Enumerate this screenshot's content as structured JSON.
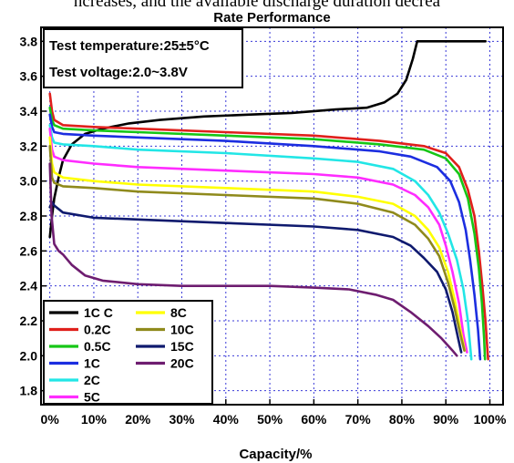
{
  "caption_fragment": "ncreases, and the available discharge duration decrea",
  "chart_data": {
    "type": "line",
    "title": "Rate Performance",
    "xlabel": "Capacity/%",
    "ylabel": "",
    "xlim": [
      -2,
      103
    ],
    "ylim": [
      1.72,
      3.88
    ],
    "x_ticks": [
      0,
      10,
      20,
      30,
      40,
      50,
      60,
      70,
      80,
      90,
      100
    ],
    "x_tick_labels": [
      "0%",
      "10%",
      "20%",
      "30%",
      "40%",
      "50%",
      "60%",
      "70%",
      "80%",
      "90%",
      "100%"
    ],
    "y_ticks": [
      1.8,
      2.0,
      2.2,
      2.4,
      2.6,
      2.8,
      3.0,
      3.2,
      3.4,
      3.6,
      3.8
    ],
    "y_tick_labels": [
      "1.8",
      "2.0",
      "2.2",
      "2.4",
      "2.6",
      "2.8",
      "3.0",
      "3.2",
      "3.4",
      "3.6",
      "3.8"
    ],
    "grid": true,
    "legend_position": "bottom-left",
    "annotations": [
      "Test temperature:25±5°C",
      "Test voltage:2.0~3.8V"
    ],
    "series": [
      {
        "name": "1C C",
        "color": "#000000",
        "points": [
          [
            0,
            2.68
          ],
          [
            0.5,
            2.8
          ],
          [
            1,
            2.9
          ],
          [
            2,
            3.02
          ],
          [
            3,
            3.12
          ],
          [
            5,
            3.21
          ],
          [
            8,
            3.27
          ],
          [
            12,
            3.3
          ],
          [
            18,
            3.33
          ],
          [
            25,
            3.35
          ],
          [
            35,
            3.37
          ],
          [
            45,
            3.38
          ],
          [
            55,
            3.39
          ],
          [
            65,
            3.41
          ],
          [
            72,
            3.42
          ],
          [
            76,
            3.45
          ],
          [
            79,
            3.5
          ],
          [
            81,
            3.58
          ],
          [
            82.5,
            3.7
          ],
          [
            83.5,
            3.8
          ],
          [
            85,
            3.8
          ],
          [
            99,
            3.8
          ]
        ]
      },
      {
        "name": "0.2C",
        "color": "#e0201c",
        "points": [
          [
            0,
            3.5
          ],
          [
            0.5,
            3.4
          ],
          [
            1,
            3.35
          ],
          [
            3,
            3.32
          ],
          [
            10,
            3.31
          ],
          [
            20,
            3.3
          ],
          [
            40,
            3.28
          ],
          [
            60,
            3.26
          ],
          [
            75,
            3.23
          ],
          [
            85,
            3.2
          ],
          [
            90,
            3.16
          ],
          [
            93,
            3.08
          ],
          [
            95,
            2.95
          ],
          [
            96.5,
            2.8
          ],
          [
            97.5,
            2.6
          ],
          [
            98.3,
            2.4
          ],
          [
            99,
            2.2
          ],
          [
            99.4,
            2.05
          ],
          [
            99.6,
            1.98
          ]
        ]
      },
      {
        "name": "0.5C",
        "color": "#16c616",
        "points": [
          [
            0,
            3.42
          ],
          [
            0.5,
            3.35
          ],
          [
            1,
            3.32
          ],
          [
            3,
            3.3
          ],
          [
            10,
            3.29
          ],
          [
            20,
            3.28
          ],
          [
            40,
            3.26
          ],
          [
            60,
            3.24
          ],
          [
            75,
            3.21
          ],
          [
            85,
            3.18
          ],
          [
            90,
            3.13
          ],
          [
            93,
            3.04
          ],
          [
            95,
            2.9
          ],
          [
            96.5,
            2.7
          ],
          [
            97.5,
            2.5
          ],
          [
            98.2,
            2.3
          ],
          [
            98.7,
            2.1
          ],
          [
            98.9,
            1.98
          ]
        ]
      },
      {
        "name": "1C",
        "color": "#1c2ee0",
        "points": [
          [
            0,
            3.38
          ],
          [
            0.5,
            3.31
          ],
          [
            1,
            3.28
          ],
          [
            3,
            3.27
          ],
          [
            10,
            3.26
          ],
          [
            20,
            3.25
          ],
          [
            40,
            3.23
          ],
          [
            60,
            3.2
          ],
          [
            75,
            3.17
          ],
          [
            82,
            3.14
          ],
          [
            88,
            3.08
          ],
          [
            91,
            3.0
          ],
          [
            93,
            2.88
          ],
          [
            94.5,
            2.72
          ],
          [
            95.5,
            2.55
          ],
          [
            96.5,
            2.35
          ],
          [
            97.3,
            2.15
          ],
          [
            97.8,
            1.98
          ]
        ]
      },
      {
        "name": "2C",
        "color": "#22e6e6",
        "points": [
          [
            0,
            3.32
          ],
          [
            0.5,
            3.25
          ],
          [
            1,
            3.22
          ],
          [
            3,
            3.21
          ],
          [
            10,
            3.2
          ],
          [
            20,
            3.18
          ],
          [
            40,
            3.16
          ],
          [
            60,
            3.13
          ],
          [
            70,
            3.11
          ],
          [
            78,
            3.07
          ],
          [
            83,
            3.0
          ],
          [
            86,
            2.92
          ],
          [
            88.5,
            2.82
          ],
          [
            90.5,
            2.7
          ],
          [
            92.5,
            2.55
          ],
          [
            94,
            2.38
          ],
          [
            95,
            2.2
          ],
          [
            95.8,
            1.98
          ]
        ]
      },
      {
        "name": "5C",
        "color": "#ff2cff",
        "points": [
          [
            0,
            3.3
          ],
          [
            0.5,
            3.18
          ],
          [
            1,
            3.14
          ],
          [
            3,
            3.12
          ],
          [
            10,
            3.1
          ],
          [
            20,
            3.08
          ],
          [
            40,
            3.06
          ],
          [
            60,
            3.04
          ],
          [
            70,
            3.02
          ],
          [
            78,
            2.98
          ],
          [
            83,
            2.92
          ],
          [
            86,
            2.85
          ],
          [
            88.5,
            2.75
          ],
          [
            90,
            2.63
          ],
          [
            91.5,
            2.48
          ],
          [
            93,
            2.3
          ],
          [
            94,
            2.12
          ],
          [
            94.8,
            2.02
          ]
        ]
      },
      {
        "name": "8C",
        "color": "#ffff00",
        "points": [
          [
            0,
            3.25
          ],
          [
            0.5,
            3.1
          ],
          [
            1,
            3.05
          ],
          [
            3,
            3.02
          ],
          [
            10,
            3.0
          ],
          [
            20,
            2.98
          ],
          [
            40,
            2.96
          ],
          [
            60,
            2.94
          ],
          [
            70,
            2.91
          ],
          [
            78,
            2.87
          ],
          [
            83,
            2.8
          ],
          [
            86,
            2.72
          ],
          [
            88.5,
            2.62
          ],
          [
            90.5,
            2.48
          ],
          [
            92,
            2.32
          ],
          [
            93.3,
            2.15
          ],
          [
            94.3,
            2.03
          ]
        ]
      },
      {
        "name": "10C",
        "color": "#8f8a1c",
        "points": [
          [
            0,
            3.2
          ],
          [
            0.5,
            3.02
          ],
          [
            1,
            2.99
          ],
          [
            3,
            2.97
          ],
          [
            10,
            2.96
          ],
          [
            20,
            2.94
          ],
          [
            40,
            2.92
          ],
          [
            60,
            2.9
          ],
          [
            70,
            2.87
          ],
          [
            78,
            2.82
          ],
          [
            83,
            2.75
          ],
          [
            86,
            2.67
          ],
          [
            88.5,
            2.57
          ],
          [
            90.5,
            2.42
          ],
          [
            92,
            2.27
          ],
          [
            93.3,
            2.12
          ],
          [
            94.2,
            2.03
          ]
        ]
      },
      {
        "name": "15C",
        "color": "#0f1a6e",
        "points": [
          [
            0,
            2.85
          ],
          [
            0.5,
            2.88
          ],
          [
            1,
            2.86
          ],
          [
            3,
            2.82
          ],
          [
            10,
            2.79
          ],
          [
            20,
            2.78
          ],
          [
            40,
            2.76
          ],
          [
            60,
            2.74
          ],
          [
            70,
            2.72
          ],
          [
            78,
            2.68
          ],
          [
            82,
            2.63
          ],
          [
            85,
            2.56
          ],
          [
            88,
            2.48
          ],
          [
            90,
            2.38
          ],
          [
            91.5,
            2.25
          ],
          [
            92.8,
            2.1
          ],
          [
            93.5,
            2.02
          ]
        ]
      },
      {
        "name": "20C",
        "color": "#6e1d70",
        "points": [
          [
            0,
            3.1
          ],
          [
            0.4,
            2.8
          ],
          [
            1,
            2.64
          ],
          [
            2,
            2.6
          ],
          [
            3,
            2.58
          ],
          [
            5,
            2.52
          ],
          [
            8,
            2.46
          ],
          [
            12,
            2.43
          ],
          [
            20,
            2.41
          ],
          [
            30,
            2.4
          ],
          [
            40,
            2.4
          ],
          [
            50,
            2.4
          ],
          [
            60,
            2.39
          ],
          [
            68,
            2.38
          ],
          [
            74,
            2.35
          ],
          [
            78,
            2.32
          ],
          [
            82,
            2.25
          ],
          [
            86,
            2.17
          ],
          [
            89,
            2.1
          ],
          [
            91.5,
            2.03
          ],
          [
            92.5,
            2.0
          ]
        ]
      }
    ]
  }
}
